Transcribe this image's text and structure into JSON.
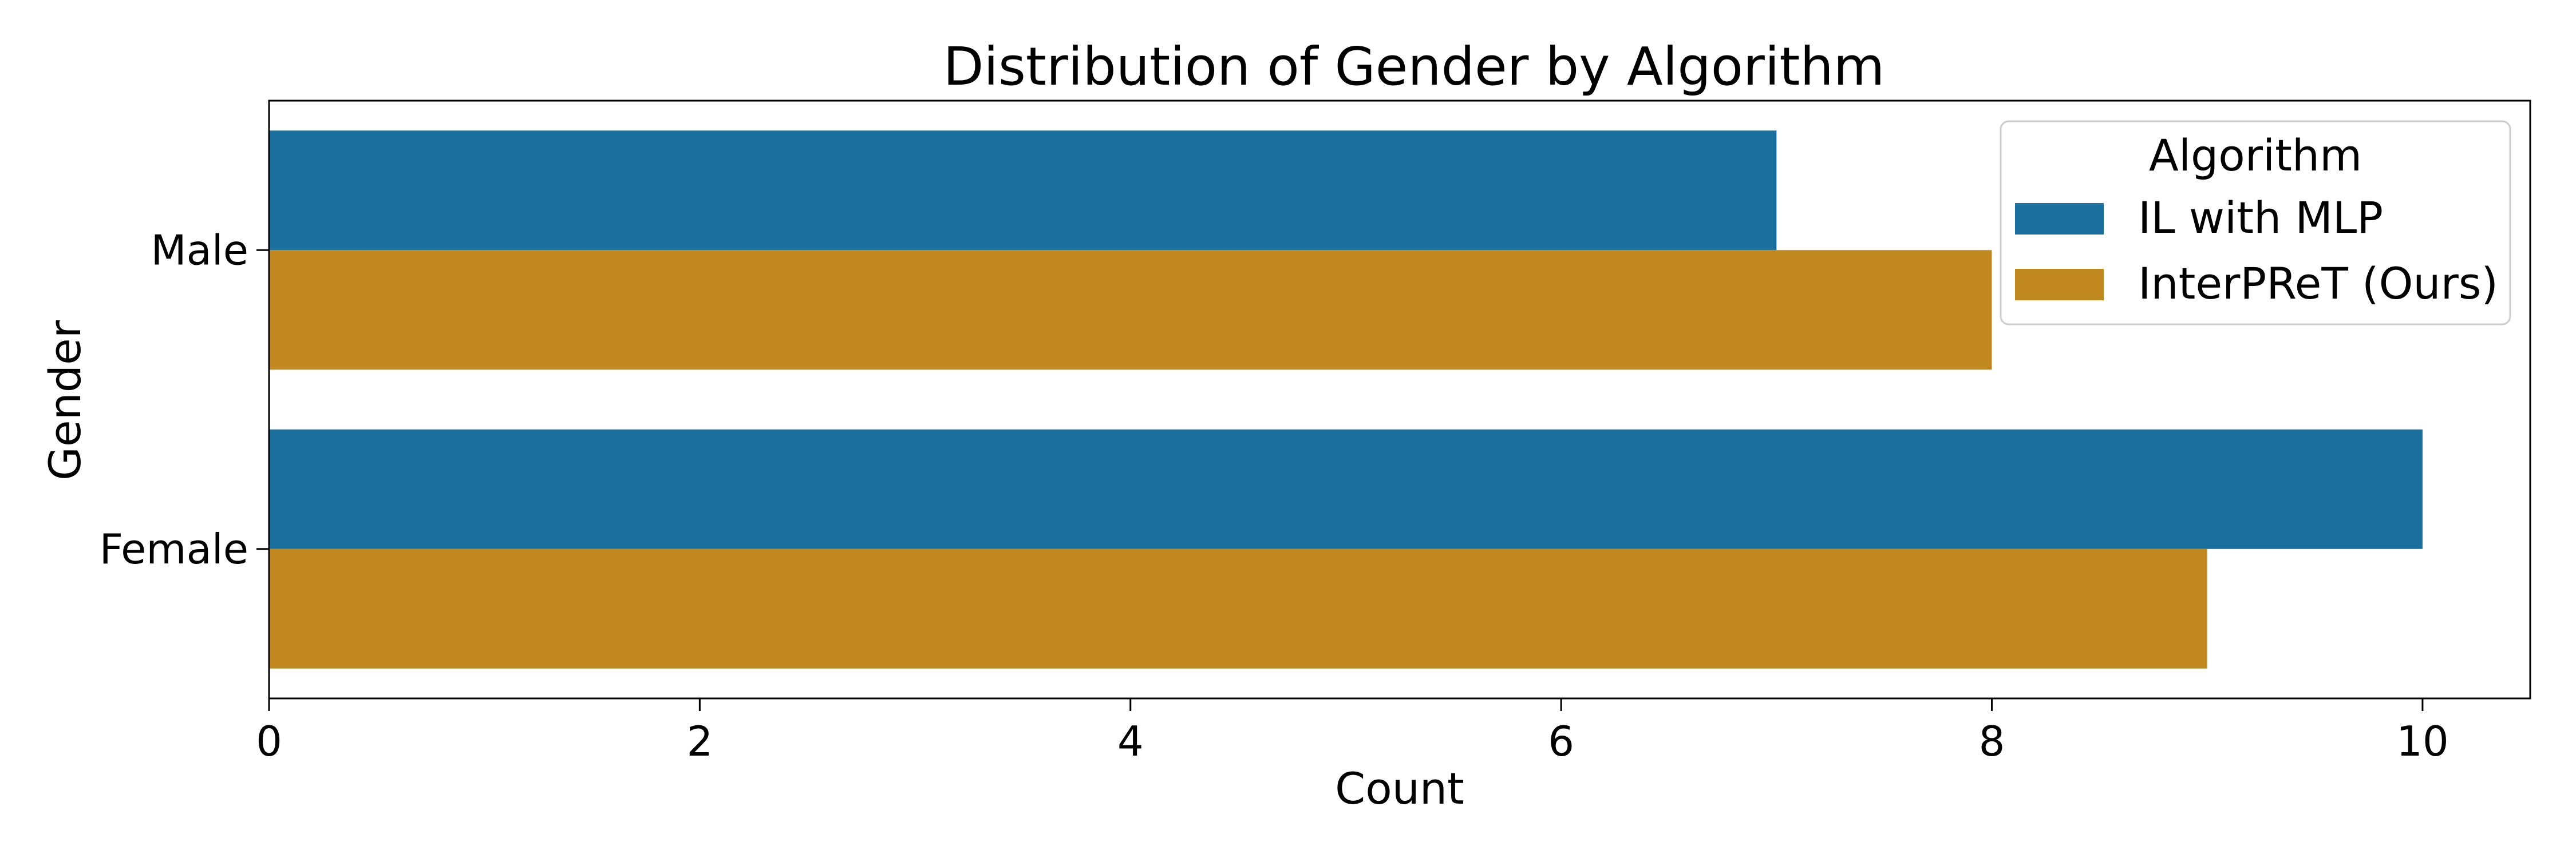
{
  "chart_data": {
    "type": "bar",
    "orientation": "horizontal",
    "title": "Distribution of Gender by Algorithm",
    "xlabel": "Count",
    "ylabel": "Gender",
    "categories": [
      "Male",
      "Female"
    ],
    "series": [
      {
        "name": "IL with MLP",
        "values": [
          7,
          10
        ],
        "color": "#1a6f9f"
      },
      {
        "name": "InterPReT (Ours)",
        "values": [
          8,
          9
        ],
        "color": "#c28820"
      }
    ],
    "xlim": [
      0,
      10.5
    ],
    "xticks": [
      0,
      2,
      4,
      6,
      8,
      10
    ],
    "grid": false,
    "legend": {
      "title": "Algorithm",
      "placement": "top-right"
    }
  }
}
